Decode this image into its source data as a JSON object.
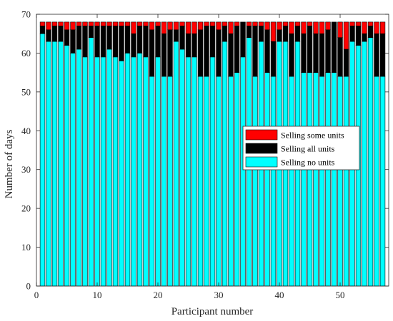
{
  "chart_data": {
    "type": "bar",
    "stacked": true,
    "xlabel": "Participant number",
    "ylabel": "Number of days",
    "xlim": [
      0,
      58
    ],
    "ylim": [
      0,
      70
    ],
    "xticks": [
      0,
      10,
      20,
      30,
      40,
      50
    ],
    "yticks": [
      0,
      10,
      20,
      30,
      40,
      50,
      60,
      70
    ],
    "grid": false,
    "legend_position": "center-right",
    "legend_order": [
      2,
      1,
      0
    ],
    "categories": [
      1,
      2,
      3,
      4,
      5,
      6,
      7,
      8,
      9,
      10,
      11,
      12,
      13,
      14,
      15,
      16,
      17,
      18,
      19,
      20,
      21,
      22,
      23,
      24,
      25,
      26,
      27,
      28,
      29,
      30,
      31,
      32,
      33,
      34,
      35,
      36,
      37,
      38,
      39,
      40,
      41,
      42,
      43,
      44,
      45,
      46,
      47,
      48,
      49,
      50,
      51,
      52,
      53,
      54,
      55,
      56,
      57
    ],
    "series": [
      {
        "name": "Selling no units",
        "color": "#00ffff",
        "values": [
          65,
          63,
          63,
          63,
          62,
          60,
          61,
          59,
          64,
          59,
          59,
          61,
          59,
          58,
          60,
          59,
          60,
          59,
          54,
          59,
          54,
          54,
          63,
          61,
          59,
          59,
          54,
          54,
          59,
          54,
          63,
          54,
          55,
          59,
          64,
          54,
          63,
          55,
          54,
          63,
          63,
          54,
          63,
          55,
          55,
          55,
          54,
          55,
          55,
          54,
          54,
          63,
          62,
          63,
          64,
          54,
          54
        ]
      },
      {
        "name": "Selling all units",
        "color": "#000000",
        "values": [
          2,
          3,
          4,
          4,
          4,
          6,
          6,
          8,
          3,
          8,
          8,
          6,
          8,
          9,
          7,
          6,
          7,
          8,
          12,
          8,
          11,
          12,
          3,
          6,
          6,
          6,
          12,
          13,
          8,
          12,
          4,
          11,
          12,
          9,
          3,
          13,
          4,
          11,
          9,
          3,
          4,
          11,
          4,
          10,
          12,
          10,
          11,
          11,
          13,
          10,
          7,
          4,
          5,
          2,
          3,
          11,
          11
        ]
      },
      {
        "name": "Selling some units",
        "color": "#ff0000",
        "values": [
          1,
          2,
          1,
          1,
          2,
          2,
          1,
          1,
          1,
          1,
          1,
          1,
          1,
          1,
          1,
          3,
          1,
          1,
          2,
          1,
          3,
          2,
          2,
          1,
          3,
          3,
          2,
          1,
          1,
          2,
          1,
          3,
          1,
          0,
          1,
          1,
          1,
          2,
          5,
          2,
          1,
          3,
          1,
          3,
          1,
          3,
          3,
          2,
          0,
          4,
          7,
          1,
          1,
          3,
          1,
          3,
          3
        ]
      }
    ]
  }
}
